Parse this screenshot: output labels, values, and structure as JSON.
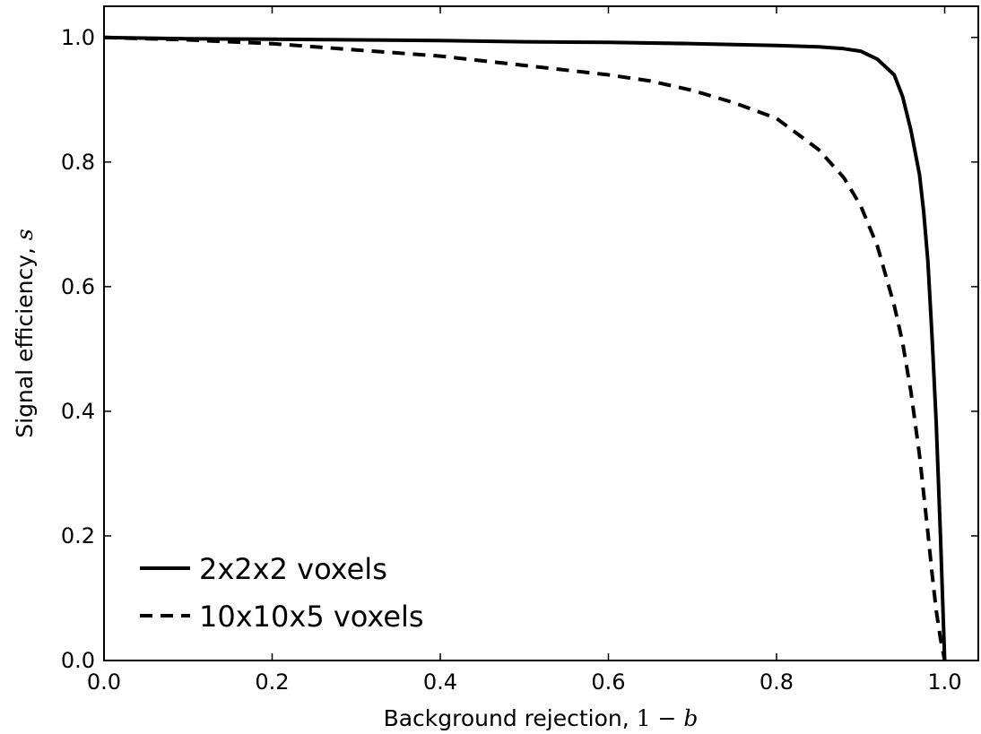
{
  "chart_data": {
    "type": "line",
    "xlabel_text": "Background rejection, ",
    "xlabel_math_a": "1",
    "xlabel_math_op": " − ",
    "xlabel_math_b": "b",
    "ylabel_text": "Signal efficiency, ",
    "ylabel_math": "s",
    "xlim": [
      0.0,
      1.04
    ],
    "ylim": [
      0.0,
      1.05
    ],
    "xticks": [
      "0.0",
      "0.2",
      "0.4",
      "0.6",
      "0.8",
      "1.0"
    ],
    "yticks": [
      "0.0",
      "0.2",
      "0.4",
      "0.6",
      "0.8",
      "1.0"
    ],
    "grid": false,
    "legend_position": "lower-left",
    "colors": {
      "line": "#000000",
      "background": "#ffffff"
    },
    "series": [
      {
        "name": "2x2x2 voxels",
        "style": "solid",
        "x": [
          0.0,
          0.1,
          0.2,
          0.3,
          0.4,
          0.5,
          0.6,
          0.7,
          0.8,
          0.85,
          0.88,
          0.9,
          0.92,
          0.94,
          0.95,
          0.96,
          0.97,
          0.975,
          0.98,
          0.985,
          0.99,
          0.995,
          1.0
        ],
        "y": [
          1.0,
          0.998,
          0.997,
          0.996,
          0.995,
          0.993,
          0.992,
          0.99,
          0.987,
          0.985,
          0.982,
          0.978,
          0.965,
          0.94,
          0.905,
          0.85,
          0.78,
          0.72,
          0.64,
          0.52,
          0.38,
          0.2,
          0.0
        ]
      },
      {
        "name": "10x10x5 voxels",
        "style": "dashed",
        "x": [
          0.0,
          0.1,
          0.2,
          0.3,
          0.4,
          0.5,
          0.6,
          0.65,
          0.7,
          0.75,
          0.8,
          0.85,
          0.88,
          0.9,
          0.92,
          0.94,
          0.95,
          0.96,
          0.97,
          0.98,
          0.985,
          0.99,
          0.995,
          1.0
        ],
        "y": [
          1.0,
          0.996,
          0.99,
          0.98,
          0.97,
          0.955,
          0.94,
          0.93,
          0.915,
          0.895,
          0.87,
          0.82,
          0.775,
          0.73,
          0.665,
          0.57,
          0.51,
          0.43,
          0.33,
          0.205,
          0.14,
          0.08,
          0.035,
          0.0
        ]
      }
    ]
  }
}
